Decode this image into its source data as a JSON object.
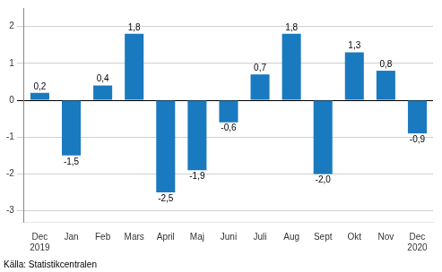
{
  "chart_data": {
    "type": "bar",
    "categories": [
      "Dec\n2019",
      "Jan",
      "Feb",
      "Mars",
      "April",
      "Maj",
      "Juni",
      "Juli",
      "Aug",
      "Sept",
      "Okt",
      "Nov",
      "Dec\n2020"
    ],
    "values": [
      0.2,
      -1.5,
      0.4,
      1.8,
      -2.5,
      -1.9,
      -0.6,
      0.7,
      1.8,
      -2.0,
      1.3,
      0.8,
      -0.9
    ],
    "value_labels": [
      "0,2",
      "-1,5",
      "0,4",
      "1,8",
      "-2,5",
      "-1,9",
      "-0,6",
      "0,7",
      "1,8",
      "-2,0",
      "1,3",
      "0,8",
      "-0,9"
    ],
    "data_labels": true,
    "color": "#1a7abf",
    "ylim": [
      -3.3,
      2.5
    ],
    "yticks": [
      -3,
      -2,
      -1,
      0,
      1,
      2
    ],
    "grid": true,
    "annotations": [
      "Källa: Statistikcentralen"
    ]
  }
}
